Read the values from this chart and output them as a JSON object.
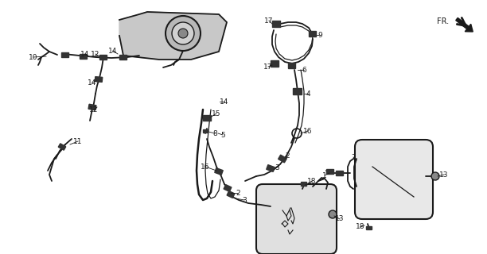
{
  "bg_color": "#ffffff",
  "line_color": "#1a1a1a",
  "fig_width": 6.12,
  "fig_height": 3.2,
  "dpi": 100
}
